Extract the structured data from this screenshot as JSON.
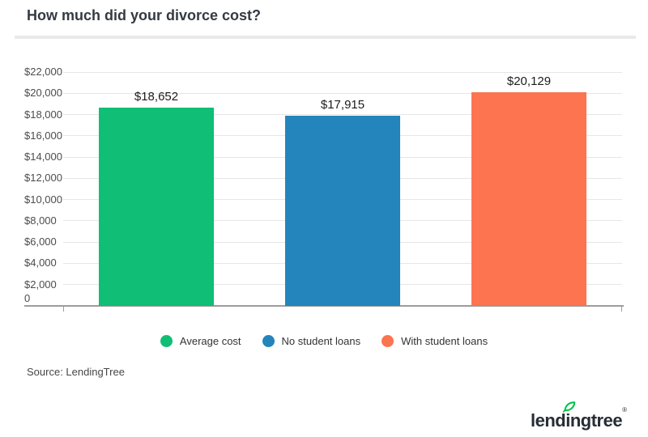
{
  "header": {
    "title": "How much did your divorce cost?"
  },
  "chart_data": {
    "type": "bar",
    "title": "How much did your divorce cost?",
    "categories": [
      "Average cost",
      "No student loans",
      "With student loans"
    ],
    "values": [
      18652,
      17915,
      20129
    ],
    "value_labels": [
      "$18,652",
      "$17,915",
      "$20,129"
    ],
    "bar_colors": [
      "#10be76",
      "#2385bc",
      "#fc7450"
    ],
    "xlabel": "",
    "ylabel": "",
    "ylim": [
      0,
      22000
    ],
    "ytick_step": 2000,
    "ytick_labels": [
      "0",
      "$2,000",
      "$4,000",
      "$6,000",
      "$8,000",
      "$10,000",
      "$12,000",
      "$14,000",
      "$16,000",
      "$18,000",
      "$20,000",
      "$22,000"
    ],
    "grid": true,
    "legend_position": "bottom"
  },
  "legend": {
    "items": [
      {
        "label": "Average cost",
        "color": "#10be76"
      },
      {
        "label": "No student loans",
        "color": "#2385bc"
      },
      {
        "label": "With student loans",
        "color": "#fc7450"
      }
    ]
  },
  "footer": {
    "source": "Source: LendingTree"
  },
  "logo": {
    "part1": "lend",
    "part2": "i",
    "part3": "ngtree",
    "mark": "®",
    "leaf_color": "#00c24e",
    "text_color": "#262d35"
  },
  "colors": {
    "gridline": "#e6e6e6",
    "axis": "#9d9d9d",
    "title_text": "#333a41",
    "tick_text": "#4c4c4c"
  }
}
